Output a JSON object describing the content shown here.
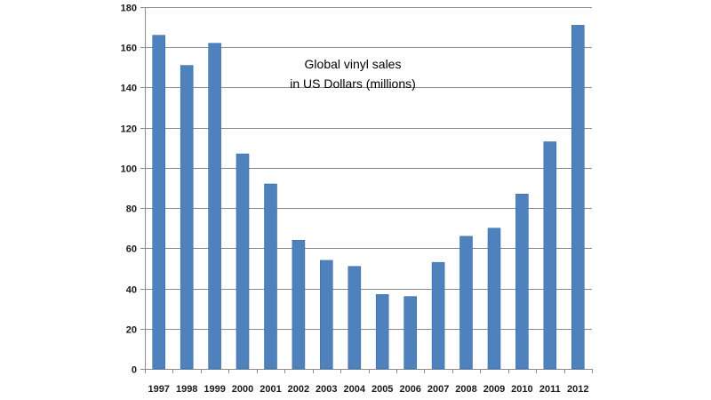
{
  "chart_data": {
    "type": "bar",
    "title_lines": [
      "Global vinyl sales",
      "in US Dollars (millions)"
    ],
    "xlabel": "",
    "ylabel": "",
    "categories": [
      "1997",
      "1998",
      "1999",
      "2000",
      "2001",
      "2002",
      "2003",
      "2004",
      "2005",
      "2006",
      "2007",
      "2008",
      "2009",
      "2010",
      "2011",
      "2012"
    ],
    "series": [
      {
        "values": [
          166,
          151,
          162,
          107,
          92,
          64,
          54,
          51,
          37,
          36,
          53,
          66,
          70,
          87,
          113,
          171
        ]
      }
    ],
    "ylim": [
      0,
      180
    ],
    "yticks": [
      0,
      20,
      40,
      60,
      80,
      100,
      120,
      140,
      160,
      180
    ],
    "grid": true,
    "legend": "none",
    "colors": {
      "bar": "#4f81bd",
      "bar_edge": "#3a6ea5",
      "grid": "#8c8c8c"
    }
  }
}
